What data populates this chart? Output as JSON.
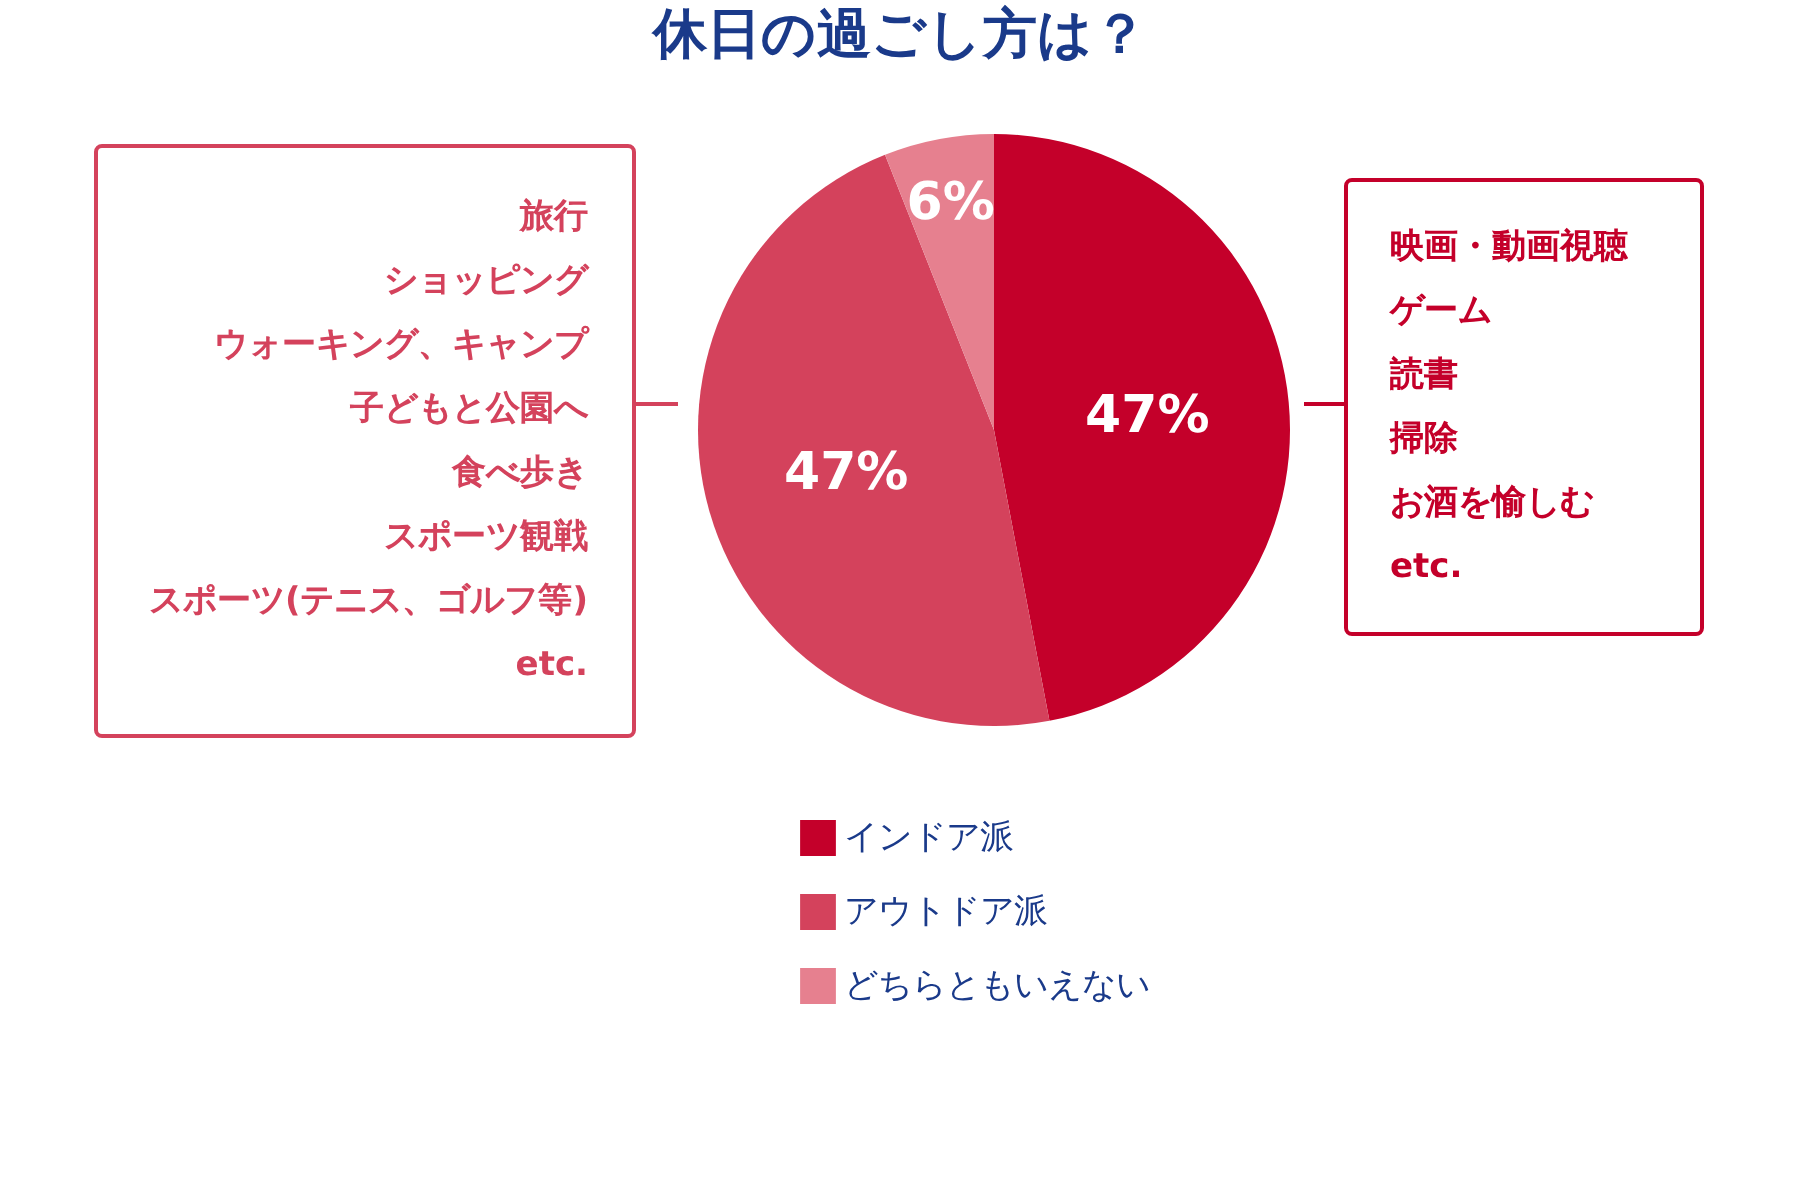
{
  "chart_data": {
    "type": "pie",
    "title": "休日の過ごし方は？",
    "categories": [
      "インドア派",
      "アウトドア派",
      "どちらともいえない"
    ],
    "values": [
      47,
      47,
      6
    ],
    "value_labels": [
      "47%",
      "47%",
      "6%"
    ],
    "colors": [
      "#c4002a",
      "#d4425c",
      "#e6808f"
    ],
    "legend": "bottom",
    "annotations": [
      "旅行",
      "ショッピング",
      "ウォーキング、キャンプ",
      "子どもと公園へ",
      "食べ歩き",
      "スポーツ観戦",
      "スポーツ(テニス、ゴルフ等)",
      "etc.",
      "映画・動画視聴",
      "ゲーム",
      "読書",
      "掃除",
      "お酒を愉しむ",
      "etc."
    ]
  }
}
